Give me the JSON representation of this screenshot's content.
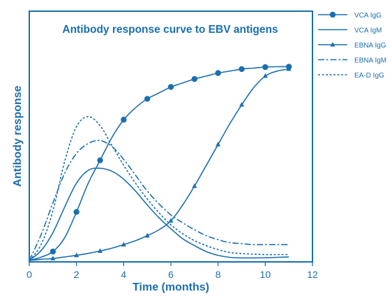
{
  "colors": {
    "series": "#1a6fae"
  },
  "chart_data": {
    "type": "line",
    "title": "Antibody response curve to EBV antigens",
    "xlabel": "Time (months)",
    "ylabel": "Antibody response",
    "xlim": [
      0,
      12
    ],
    "ylim": [
      0,
      100
    ],
    "x_ticks": [
      0,
      2,
      4,
      6,
      8,
      10,
      12
    ],
    "y_ticks": [],
    "grid": false,
    "legend_position": "right, outside plot",
    "series": [
      {
        "name": "VCA IgG",
        "line_style": "solid",
        "marker": "circle",
        "x": [
          0,
          0.5,
          1,
          1.5,
          2,
          2.5,
          3,
          3.5,
          4,
          4.5,
          5,
          5.5,
          6,
          6.5,
          7,
          7.5,
          8,
          8.5,
          9,
          9.5,
          10,
          10.5,
          11
        ],
        "y": [
          0,
          1.7,
          4.5,
          11.5,
          24.5,
          39,
          50.5,
          62,
          71,
          77,
          81.5,
          84.5,
          87.5,
          89.5,
          91.5,
          93,
          94.5,
          95.5,
          96.5,
          97,
          97.5,
          97.7,
          97.7
        ],
        "markers_at": [
          1,
          2,
          3,
          4,
          5,
          6,
          7,
          8,
          9,
          10,
          11
        ]
      },
      {
        "name": "VCA IgM",
        "line_style": "solid",
        "marker": "none",
        "x": [
          0,
          0.5,
          1,
          1.5,
          2,
          2.5,
          3,
          3.5,
          4,
          4.5,
          5,
          5.5,
          6,
          6.5,
          7,
          7.5,
          8,
          8.5,
          9,
          9.5,
          10,
          10.5,
          11
        ],
        "y": [
          0,
          5,
          14,
          27,
          39,
          45.5,
          46.5,
          45,
          41,
          35,
          28,
          21.5,
          16,
          11,
          7.5,
          4.5,
          2.6,
          1.6,
          1.3,
          1.3,
          1.4,
          1.6,
          1.8
        ]
      },
      {
        "name": "EBNA IgG",
        "line_style": "solid",
        "marker": "triangle",
        "x": [
          0,
          0.5,
          1,
          1.5,
          2,
          2.5,
          3,
          3.5,
          4,
          4.5,
          5,
          5.5,
          6,
          6.5,
          7,
          7.5,
          8,
          8.5,
          9,
          9.5,
          10,
          10.5,
          11
        ],
        "y": [
          0,
          0.6,
          1,
          1.8,
          2.6,
          3.6,
          4.8,
          6.2,
          8,
          10,
          12.5,
          15.5,
          20,
          28,
          37.5,
          48,
          58.5,
          69,
          78.5,
          87,
          93,
          95.5,
          96.5
        ],
        "markers_at": [
          1,
          2,
          3,
          4,
          5,
          6,
          7,
          8,
          9,
          10,
          11
        ]
      },
      {
        "name": "EBNA IgM",
        "line_style": "dash-dot",
        "marker": "none",
        "x": [
          0,
          0.5,
          1,
          1.5,
          2,
          2.5,
          3,
          3.5,
          4,
          4.5,
          5,
          5.5,
          6,
          6.5,
          7,
          7.5,
          8,
          8.5,
          9,
          9.5,
          10,
          10.5,
          11
        ],
        "y": [
          0,
          13,
          29,
          44,
          54,
          59,
          60.5,
          57.5,
          51,
          43,
          35,
          28.5,
          23,
          19,
          15.5,
          12.5,
          10.5,
          9,
          8.5,
          8,
          8,
          8,
          8
        ]
      },
      {
        "name": "EA-D IgG",
        "line_style": "dashed",
        "marker": "none",
        "x": [
          0,
          0.5,
          1,
          1.5,
          2,
          2.5,
          3,
          3.5,
          4,
          4.5,
          5,
          5.5,
          6,
          6.5,
          7,
          7.5,
          8,
          8.5,
          9,
          9.5,
          10,
          10.5,
          11
        ],
        "y": [
          0,
          8,
          25,
          50,
          67.5,
          72.5,
          68,
          58,
          48,
          39,
          31,
          24,
          18,
          13.5,
          10,
          7.5,
          5.5,
          4,
          3.5,
          3.2,
          3,
          3,
          3
        ]
      }
    ]
  }
}
